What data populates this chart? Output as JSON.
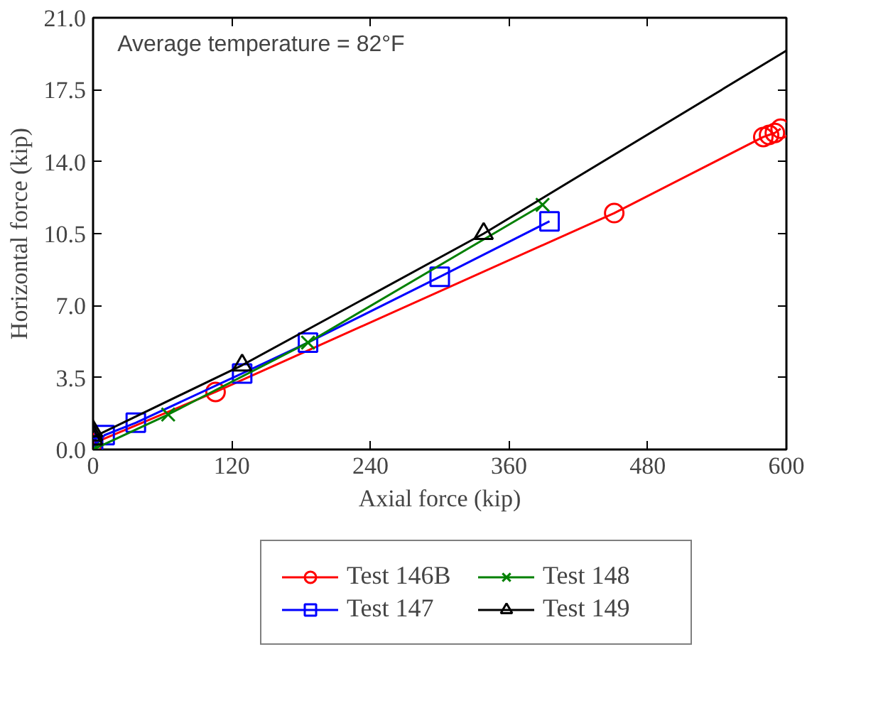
{
  "chart_data": {
    "type": "line",
    "xlabel": "Axial force (kip)",
    "ylabel": "Horizontal force (kip)",
    "annotations": [
      "Average temperature = 82°F"
    ],
    "xlim": [
      0,
      600
    ],
    "xticks": [
      0,
      120,
      240,
      360,
      480,
      600
    ],
    "ylim": [
      0,
      21
    ],
    "yticks": [
      {
        "value": 0,
        "label": "0.0"
      },
      3.5,
      {
        "value": 7,
        "label": "7.0"
      },
      10.5,
      {
        "value": 14,
        "label": "14.0"
      },
      17.5,
      {
        "value": 21,
        "label": "21.0"
      }
    ],
    "grid": false,
    "legend": "bottom",
    "series": [
      {
        "name": "Test 146B",
        "marker": "circle",
        "color": "#ff0000",
        "x": [
          0,
          106,
          451,
          580,
          585,
          590,
          595
        ],
        "values": [
          0.3,
          2.8,
          11.5,
          15.2,
          15.3,
          15.4,
          15.6
        ]
      },
      {
        "name": "Test 147",
        "marker": "square",
        "color": "#0000ff",
        "x": [
          0,
          10,
          37,
          129,
          186,
          300,
          395
        ],
        "values": [
          0.1,
          0.7,
          1.3,
          3.7,
          5.2,
          8.4,
          11.1
        ]
      },
      {
        "name": "Test 148",
        "marker": "cross",
        "color": "#008000",
        "x": [
          0,
          65,
          186,
          389
        ],
        "values": [
          0.0,
          1.7,
          5.2,
          11.9
        ]
      },
      {
        "marker": "none",
        "color": "#000000",
        "x": [
          0,
          129,
          338,
          600
        ],
        "values": [
          0.6,
          4.1,
          10.5,
          19.4
        ]
      },
      {
        "name": "Test 149",
        "type": "scatter",
        "marker": "triangle",
        "color": "#000000",
        "x": [
          0,
          0,
          0,
          129,
          338
        ],
        "values": [
          0.5,
          0.7,
          0.9,
          4.1,
          10.5
        ]
      }
    ]
  }
}
